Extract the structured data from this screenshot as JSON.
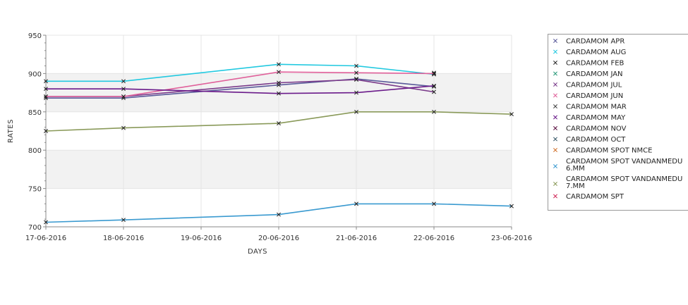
{
  "chart_data": {
    "type": "line",
    "title": "",
    "xlabel": "DAYS",
    "ylabel": "RATES",
    "x": [
      "17-06-2016",
      "18-06-2016",
      "19-06-2016",
      "20-06-2016",
      "21-06-2016",
      "22-06-2016",
      "23-06-2016"
    ],
    "ylim": [
      700,
      950
    ],
    "yticks": [
      700,
      750,
      800,
      850,
      900,
      950
    ],
    "grid": true,
    "legend_position": "right",
    "series": [
      {
        "name": "CARDAMOM APR",
        "color": "#5a5a9a",
        "values": [
          868,
          868,
          null,
          885,
          893,
          883,
          null
        ]
      },
      {
        "name": "CARDAMOM AUG",
        "color": "#22c9e0",
        "values": [
          890,
          890,
          null,
          912,
          910,
          899,
          null
        ]
      },
      {
        "name": "CARDAMOM FEB",
        "color": "#2a2a2a",
        "values": [
          null,
          null,
          null,
          null,
          null,
          901,
          null
        ]
      },
      {
        "name": "CARDAMOM JAN",
        "color": "#2a9a7a",
        "values": [
          null,
          null,
          null,
          null,
          null,
          null,
          null
        ]
      },
      {
        "name": "CARDAMOM JUL",
        "color": "#7a3a8a",
        "values": [
          870,
          870,
          null,
          888,
          892,
          876,
          null
        ]
      },
      {
        "name": "CARDAMOM JUN",
        "color": "#e0609a",
        "values": [
          870,
          870,
          null,
          902,
          901,
          900,
          null
        ]
      },
      {
        "name": "CARDAMOM MAR",
        "color": "#444444",
        "values": [
          null,
          null,
          null,
          null,
          null,
          null,
          null
        ]
      },
      {
        "name": "CARDAMOM MAY",
        "color": "#6a1a8a",
        "values": [
          880,
          880,
          null,
          874,
          875,
          884,
          null
        ]
      },
      {
        "name": "CARDAMOM NOV",
        "color": "#5a1040",
        "values": [
          null,
          null,
          null,
          null,
          null,
          null,
          null
        ]
      },
      {
        "name": "CARDAMOM OCT",
        "color": "#3a5a6a",
        "values": [
          null,
          null,
          null,
          null,
          null,
          null,
          null
        ]
      },
      {
        "name": "CARDAMOM SPOT NMCE",
        "color": "#d0702a",
        "values": [
          null,
          null,
          null,
          null,
          null,
          null,
          null
        ]
      },
      {
        "name": "CARDAMOM SPOT VANDANMEDU 6.MM",
        "color": "#3a9ad0",
        "values": [
          706,
          709,
          null,
          716,
          730,
          730,
          727
        ]
      },
      {
        "name": "CARDAMOM SPOT VANDANMEDU 7.MM",
        "color": "#8a9a5a",
        "values": [
          825,
          829,
          null,
          835,
          850,
          850,
          847
        ]
      },
      {
        "name": "CARDAMOM SPT",
        "color": "#d02a5a",
        "values": [
          null,
          null,
          null,
          null,
          null,
          null,
          null
        ]
      }
    ]
  }
}
